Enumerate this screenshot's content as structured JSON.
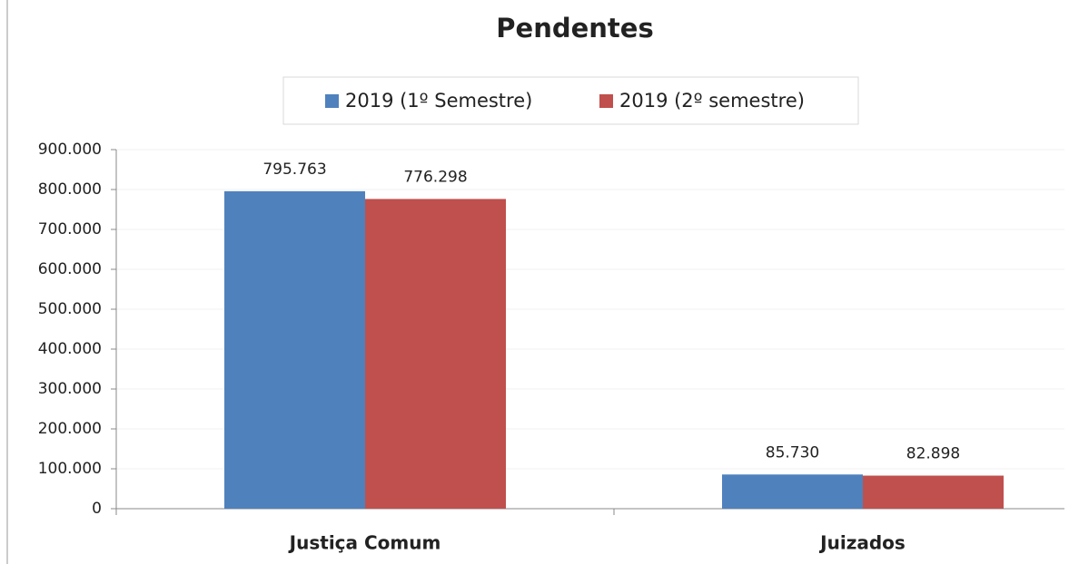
{
  "chart_data": {
    "type": "bar",
    "title": "Pendentes",
    "categories": [
      "Justiça Comum",
      "Juizados"
    ],
    "series": [
      {
        "name": "2019 (1º Semestre)",
        "color": "#4f81bd",
        "values": [
          795763,
          85730
        ],
        "value_labels": [
          "795.763",
          "85.730"
        ]
      },
      {
        "name": "2019 (2º semestre)",
        "color": "#c0504d",
        "values": [
          776298,
          82898
        ],
        "value_labels": [
          "776.298",
          "82.898"
        ]
      }
    ],
    "ylim": [
      0,
      900000
    ],
    "yticks": [
      {
        "value": 0,
        "label": "0"
      },
      {
        "value": 100000,
        "label": "100.000"
      },
      {
        "value": 200000,
        "label": "200.000"
      },
      {
        "value": 300000,
        "label": "300.000"
      },
      {
        "value": 400000,
        "label": "400.000"
      },
      {
        "value": 500000,
        "label": "500.000"
      },
      {
        "value": 600000,
        "label": "600.000"
      },
      {
        "value": 700000,
        "label": "700.000"
      },
      {
        "value": 800000,
        "label": "800.000"
      },
      {
        "value": 900000,
        "label": "900.000"
      }
    ],
    "grid": true,
    "legend": "top"
  }
}
